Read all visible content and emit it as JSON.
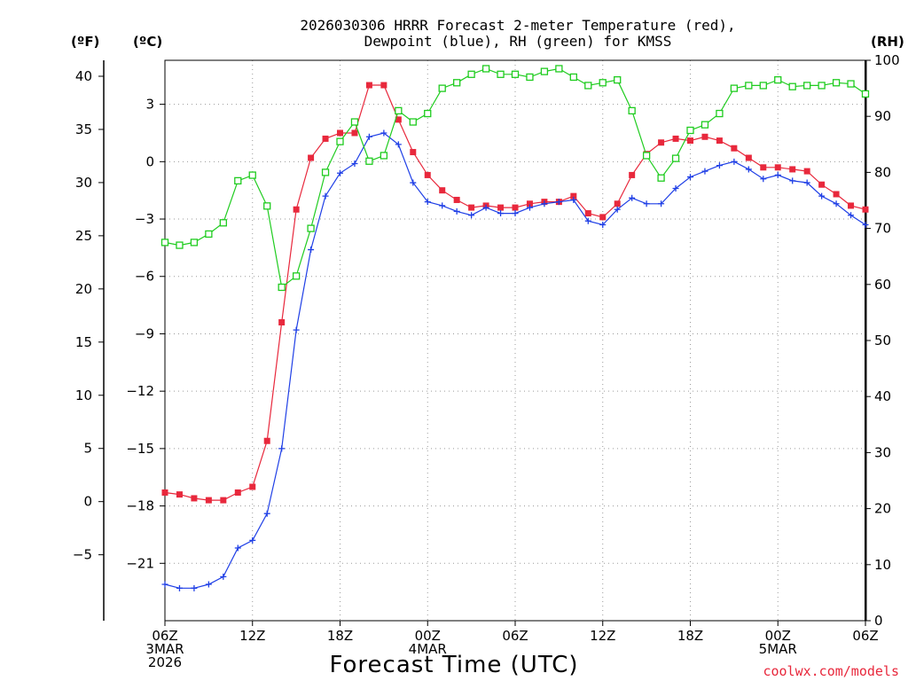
{
  "chart_data": {
    "type": "line",
    "title_lines": [
      "2026030306 HRRR Forecast 2-meter Temperature (red),",
      "Dewpoint (blue), RH (green) for KMSS"
    ],
    "units": {
      "fahrenheit": "(ºF)",
      "celsius": "(ºC)",
      "rh": "(RH)"
    },
    "xlabel": "Forecast Time (UTC)",
    "x_range_hours": [
      0,
      48
    ],
    "x_ticks": [
      {
        "h": 0,
        "lines": [
          "06Z",
          "3MAR",
          "2026"
        ]
      },
      {
        "h": 6,
        "lines": [
          "12Z"
        ]
      },
      {
        "h": 12,
        "lines": [
          "18Z"
        ]
      },
      {
        "h": 18,
        "lines": [
          "00Z",
          "4MAR"
        ]
      },
      {
        "h": 24,
        "lines": [
          "06Z"
        ]
      },
      {
        "h": 30,
        "lines": [
          "12Z"
        ]
      },
      {
        "h": 36,
        "lines": [
          "18Z"
        ]
      },
      {
        "h": 42,
        "lines": [
          "00Z",
          "5MAR"
        ]
      },
      {
        "h": 48,
        "lines": [
          "06Z"
        ]
      }
    ],
    "celsius_axis": {
      "range": [
        -24,
        5.3
      ],
      "ticks": [
        "3",
        "0",
        "−3",
        "−6",
        "−9",
        "−12",
        "−15",
        "−18",
        "−21"
      ]
    },
    "fahrenheit_axis": {
      "range": [
        -11.2,
        41.5
      ],
      "ticks": [
        "40",
        "35",
        "30",
        "25",
        "20",
        "15",
        "10",
        "5",
        "0",
        "−5"
      ]
    },
    "rh_axis": {
      "range": [
        0,
        100
      ],
      "ticks": [
        "100",
        "90",
        "80",
        "70",
        "60",
        "50",
        "40",
        "30",
        "20",
        "10",
        "0"
      ]
    },
    "series": [
      {
        "name": "Temperature",
        "unit": "C",
        "color": "#e8283c",
        "marker": "filled-square",
        "values": [
          -17.3,
          -17.4,
          -17.6,
          -17.7,
          -17.7,
          -17.3,
          -17.0,
          -14.6,
          -8.4,
          -2.5,
          0.2,
          1.2,
          1.5,
          1.5,
          4.0,
          4.0,
          2.2,
          0.5,
          -0.7,
          -1.5,
          -2.0,
          -2.4,
          -2.3,
          -2.4,
          -2.4,
          -2.2,
          -2.1,
          -2.1,
          -1.8,
          -2.7,
          -2.9,
          -2.2,
          -0.7,
          0.4,
          1.0,
          1.2,
          1.1,
          1.3,
          1.1,
          0.7,
          0.2,
          -0.3,
          -0.3,
          -0.4,
          -0.5,
          -1.2,
          -1.7,
          -2.3,
          -2.5
        ]
      },
      {
        "name": "Dewpoint",
        "unit": "C",
        "color": "#1f3fe6",
        "marker": "plus",
        "values": [
          -22.1,
          -22.3,
          -22.3,
          -22.1,
          -21.7,
          -20.2,
          -19.8,
          -18.4,
          -15.0,
          -8.8,
          -4.6,
          -1.8,
          -0.6,
          -0.1,
          1.3,
          1.5,
          0.9,
          -1.1,
          -2.1,
          -2.3,
          -2.6,
          -2.8,
          -2.4,
          -2.7,
          -2.7,
          -2.4,
          -2.2,
          -2.1,
          -2.0,
          -3.1,
          -3.3,
          -2.5,
          -1.9,
          -2.2,
          -2.2,
          -1.4,
          -0.8,
          -0.5,
          -0.2,
          0.0,
          -0.4,
          -0.9,
          -0.7,
          -1.0,
          -1.1,
          -1.8,
          -2.2,
          -2.8,
          -3.3
        ]
      },
      {
        "name": "RH",
        "unit": "%",
        "color": "#1fcc1f",
        "marker": "open-square",
        "values": [
          67.5,
          67,
          67.5,
          69,
          71,
          78.5,
          79.5,
          74,
          59.5,
          61.5,
          70,
          80,
          85.5,
          89,
          82,
          83,
          91,
          89,
          90.5,
          95,
          96,
          97.5,
          98.5,
          97.5,
          97.5,
          97,
          98,
          98.5,
          97,
          95.5,
          96,
          96.5,
          91,
          83,
          79,
          82.5,
          87.5,
          88.5,
          90.5,
          95,
          95.5,
          95.5,
          96.5,
          95.3,
          95.5,
          95.5,
          96,
          95.8,
          94
        ]
      }
    ],
    "credit": "coolwx.com/models"
  }
}
